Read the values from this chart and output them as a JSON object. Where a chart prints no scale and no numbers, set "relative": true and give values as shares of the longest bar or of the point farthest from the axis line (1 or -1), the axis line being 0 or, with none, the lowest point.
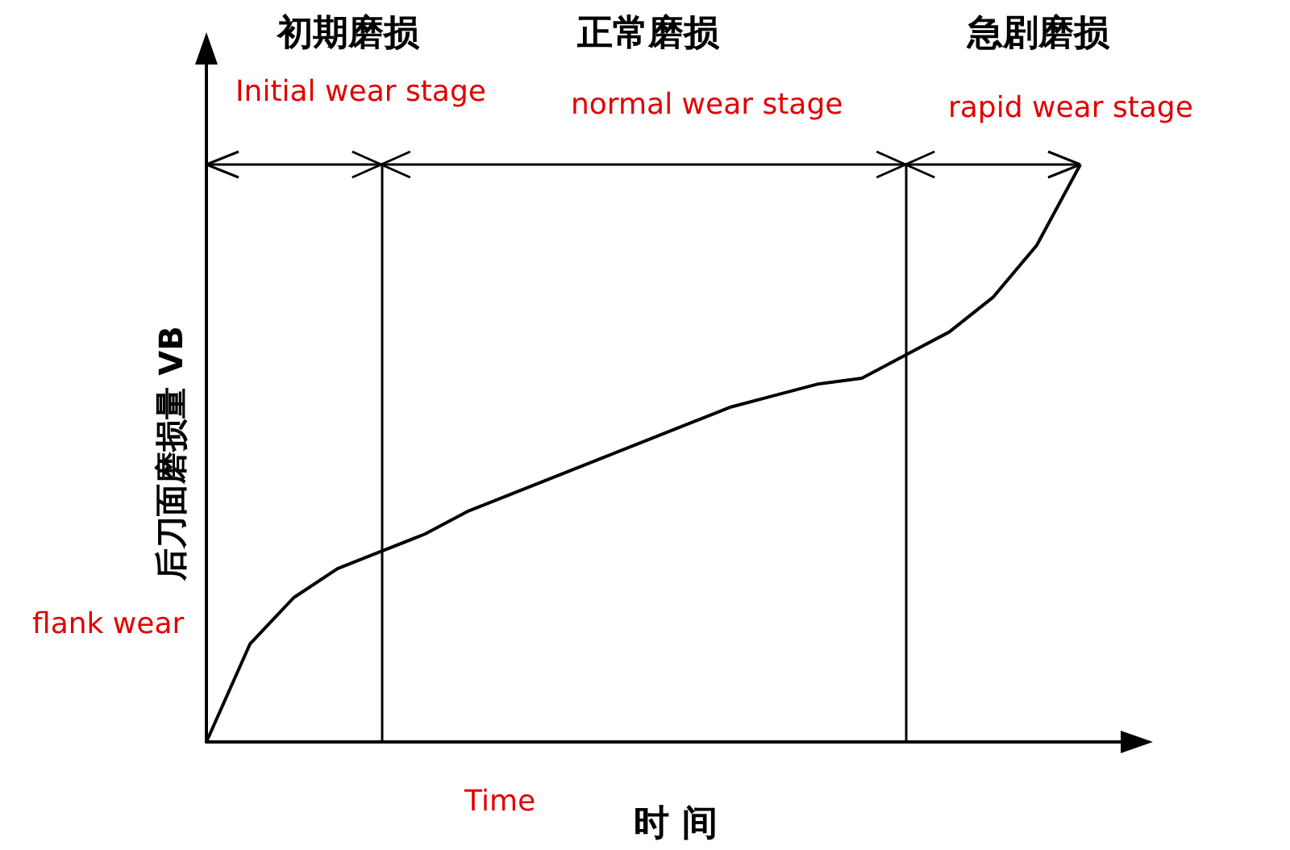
{
  "chart_data": {
    "type": "line",
    "relative": true,
    "xlabel": "时 间",
    "ylabel": "后刀面磨损量 VB",
    "annotations": [
      "初期磨损",
      "Initial wear stage",
      "正常磨损",
      "normal wear stage",
      "急剧磨损",
      "rapid wear stage",
      "flank wear",
      "Time"
    ],
    "categories": [
      null,
      null,
      null,
      null,
      null,
      null,
      null,
      null,
      null,
      null,
      null,
      null,
      null,
      null,
      null,
      null,
      null,
      null,
      null,
      null,
      null
    ],
    "series": [
      {
        "color": "#000000",
        "values": [
          0,
          0.17,
          0.25,
          0.3,
          0.33,
          0.36,
          0.4,
          0.43,
          0.46,
          0.49,
          0.52,
          0.55,
          0.58,
          0.6,
          0.62,
          0.63,
          0.67,
          0.71,
          0.77,
          0.86,
          1
        ]
      }
    ],
    "grid": false,
    "marker": "none",
    "line_style": "solid"
  }
}
